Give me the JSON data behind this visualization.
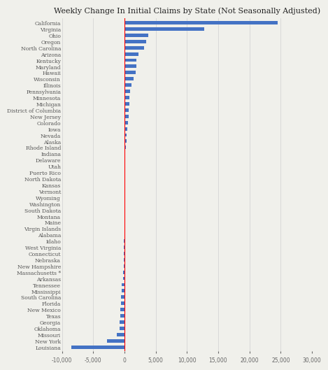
{
  "title": "Weekly Change In Initial Claims by State (Not Seasonally Adjusted)",
  "states": [
    "California",
    "Virginia",
    "Ohio",
    "Oregon",
    "North Carolina",
    "Arizona",
    "Kentucky",
    "Maryland",
    "Hawaii",
    "Wisconsin",
    "Illinois",
    "Pennsylvania",
    "Minnesota",
    "Michigan",
    "District of Columbia",
    "New Jersey",
    "Colorado",
    "Iowa",
    "Nevada",
    "Alaska",
    "Rhode Island",
    "Indiana",
    "Delaware",
    "Utah",
    "Puerto Rico",
    "North Dakota",
    "Kansas",
    "Vermont",
    "Wyoming",
    "Washington",
    "South Dakota",
    "Montana",
    "Maine",
    "Virgin Islands",
    "Alabama",
    "Idaho",
    "West Virginia",
    "Connecticut",
    "Nebraska",
    "New Hampshire",
    "Massachusetts *",
    "Arkansas",
    "Tennessee",
    "Mississippi",
    "South Carolina",
    "Florida",
    "New Mexico",
    "Texas",
    "Georgia",
    "Oklahoma",
    "Missouri",
    "New York",
    "Louisiana"
  ],
  "values": [
    24500,
    12800,
    3800,
    3500,
    3200,
    2200,
    1900,
    1900,
    1800,
    1500,
    1100,
    900,
    850,
    800,
    700,
    650,
    600,
    450,
    350,
    300,
    200,
    150,
    100,
    80,
    50,
    30,
    20,
    10,
    5,
    0,
    -5,
    -10,
    -15,
    -20,
    -30,
    -50,
    -80,
    -100,
    -120,
    -150,
    -180,
    -200,
    -400,
    -450,
    -500,
    -600,
    -650,
    -700,
    -750,
    -800,
    -1200,
    -2800,
    -8500
  ],
  "bar_color": "#4472c4",
  "vline_color": "red",
  "grid_color": "#d0d0d0",
  "background_color": "#f0f0eb",
  "title_fontsize": 8,
  "label_fontsize": 5.5,
  "tick_fontsize": 5.5,
  "xlim": [
    -10000,
    30000
  ],
  "xticks": [
    -10000,
    -5000,
    0,
    5000,
    10000,
    15000,
    20000,
    25000,
    30000
  ]
}
